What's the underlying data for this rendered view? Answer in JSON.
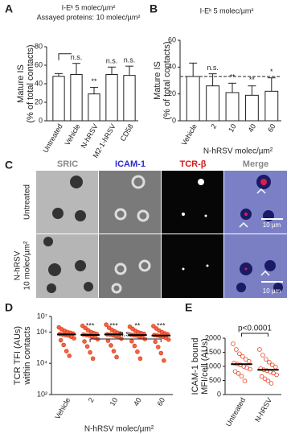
{
  "chart_data": [
    {
      "type": "bar",
      "panel": "A",
      "title": "I-Eᵏ 5 molec/µm²",
      "subtitle": "Assayed proteins: 10 molec/µm²",
      "ylabel": [
        "Mature IS",
        "(% of total contacts)"
      ],
      "categories": [
        "Untreated",
        "Vehicle",
        "N-hRSV",
        "M2-1-hRSV",
        "CD58"
      ],
      "values": [
        48,
        50,
        29,
        50,
        49
      ],
      "errors": [
        3,
        12,
        7,
        8,
        10
      ],
      "significance": [
        null,
        "n.s.",
        "**",
        "n.s.",
        "n.s."
      ],
      "ylim": [
        0,
        80
      ],
      "yticks": [
        0,
        20,
        40,
        60,
        80
      ],
      "color": "#ffffff"
    },
    {
      "type": "bar",
      "panel": "B",
      "title": "I-Eᵏ 5 molec/µm²",
      "ylabel": [
        "Mature IS",
        "(% of total contacts)"
      ],
      "xlabel": "N-hRSV molec/µm²",
      "categories": [
        "Vehicle",
        "2",
        "10",
        "40",
        "60"
      ],
      "values": [
        33,
        26,
        21,
        19,
        22
      ],
      "errors": [
        10,
        9,
        7,
        7,
        10
      ],
      "significance": [
        null,
        "n.s.",
        "**",
        "**",
        "*"
      ],
      "reference_line": 33,
      "ylim": [
        0,
        60
      ],
      "yticks": [
        0,
        20,
        40,
        60
      ],
      "color": "#ffffff"
    },
    {
      "type": "strip",
      "panel": "D",
      "ylabel": [
        "TCR TFI (AUs)",
        "within contacts"
      ],
      "xlabel": "N-hRSV molec/µm²",
      "categories": [
        "Vehicle",
        "2",
        "10",
        "40",
        "60"
      ],
      "log_scale": true,
      "ylim": [
        100,
        10000000
      ],
      "yticks": [
        {
          "value": 100,
          "label": "10²"
        },
        {
          "value": 10000,
          "label": "10⁴"
        },
        {
          "value": 1000000,
          "label": "10⁶"
        },
        {
          "value": 10000000,
          "label": "10⁷"
        }
      ],
      "medians": [
        700000,
        650000,
        700000,
        640000,
        600000
      ],
      "points": [
        [
          2000000,
          1500000,
          1200000,
          1000000,
          900000,
          800000,
          750000,
          700000,
          650000,
          600000,
          500000,
          400000,
          300000,
          150000,
          60000,
          30000
        ],
        [
          2500000,
          1800000,
          1300000,
          1000000,
          850000,
          750000,
          700000,
          650000,
          600000,
          520000,
          450000,
          350000,
          250000,
          120000,
          50000,
          20000
        ],
        [
          3000000,
          1900000,
          1400000,
          1100000,
          900000,
          800000,
          720000,
          700000,
          640000,
          560000,
          480000,
          380000,
          280000,
          140000,
          60000,
          25000
        ],
        [
          2200000,
          1600000,
          1200000,
          950000,
          850000,
          760000,
          690000,
          640000,
          600000,
          530000,
          460000,
          360000,
          260000,
          130000,
          55000,
          20000
        ],
        [
          2400000,
          1700000,
          1250000,
          980000,
          820000,
          720000,
          650000,
          600000,
          560000,
          500000,
          430000,
          330000,
          240000,
          110000,
          45000,
          15000
        ]
      ],
      "significance": [
        null,
        "***",
        "***",
        "**",
        "***"
      ],
      "bracket": "n.s.",
      "color": "#e8401c"
    },
    {
      "type": "strip",
      "panel": "E",
      "ylabel": [
        "ICAM-1 bound",
        "MFI/cell (AUs)"
      ],
      "categories": [
        "Untreated",
        "N-hRSV"
      ],
      "ylim": [
        0,
        2000
      ],
      "yticks": [
        0,
        500,
        1000,
        1500,
        2000
      ],
      "medians": [
        1080,
        880
      ],
      "points": [
        [
          1800,
          1600,
          1450,
          1350,
          1250,
          1180,
          1120,
          1080,
          1050,
          1000,
          950,
          900,
          820,
          750,
          650,
          480
        ],
        [
          1600,
          1400,
          1250,
          1150,
          1050,
          980,
          920,
          880,
          850,
          800,
          760,
          700,
          640,
          560,
          480,
          400
        ]
      ],
      "bracket": "p<0.0001",
      "color": "#e8401c"
    }
  ],
  "panel_c": {
    "panel": "C",
    "columns": [
      "SRIC",
      "ICAM-1",
      "TCR-β",
      "Merge"
    ],
    "rows": [
      [
        "Untreated"
      ],
      [
        "N-hRSV",
        "10 molec/µm²"
      ]
    ],
    "scale_bar": "10 µm"
  }
}
